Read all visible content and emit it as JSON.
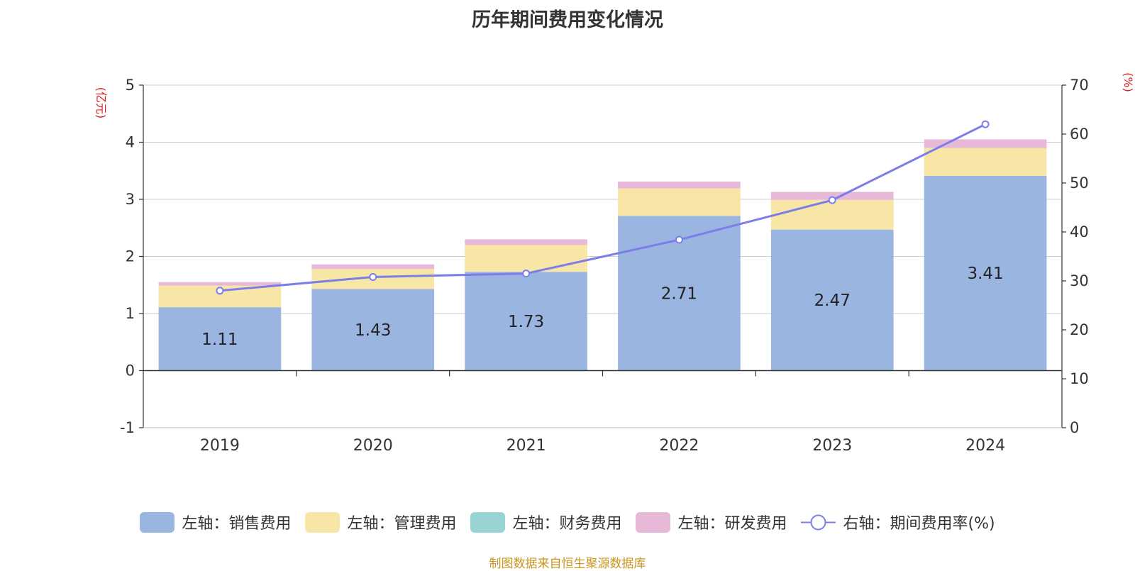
{
  "chart_data": {
    "type": "bar",
    "title": "历年期间费用变化情况",
    "categories": [
      "2019",
      "2020",
      "2021",
      "2022",
      "2023",
      "2024"
    ],
    "series": [
      {
        "name": "左轴：销售费用",
        "axis": "left",
        "color": "#9ab5e0",
        "values": [
          1.11,
          1.43,
          1.73,
          2.71,
          2.47,
          3.41
        ],
        "data_labels": [
          "1.11",
          "1.43",
          "1.73",
          "2.71",
          "2.47",
          "3.41"
        ]
      },
      {
        "name": "左轴：管理费用",
        "axis": "left",
        "color": "#f7e6a6",
        "values": [
          0.38,
          0.35,
          0.47,
          0.48,
          0.52,
          0.49
        ]
      },
      {
        "name": "左轴：财务费用",
        "axis": "left",
        "color": "#99d4d4",
        "values": [
          0.0,
          0.0,
          0.0,
          0.0,
          0.0,
          0.0
        ]
      },
      {
        "name": "左轴：研发费用",
        "axis": "left",
        "color": "#e8b8d8",
        "values": [
          0.06,
          0.08,
          0.1,
          0.12,
          0.14,
          0.15
        ]
      },
      {
        "name": "右轴：期间费用率(%)",
        "axis": "right",
        "type": "line",
        "color": "#7b7ee8",
        "values": [
          28.0,
          30.8,
          31.5,
          38.4,
          46.5,
          62.0
        ]
      }
    ],
    "y_left": {
      "label": "(亿元)",
      "ylim": [
        -1,
        5
      ],
      "ticks": [
        "-1",
        "0",
        "1",
        "2",
        "3",
        "4",
        "5"
      ]
    },
    "y_right": {
      "label": "(%)",
      "ylim": [
        0,
        70
      ],
      "ticks": [
        "0",
        "10",
        "20",
        "30",
        "40",
        "50",
        "60",
        "70"
      ]
    },
    "grid": true,
    "legend_position": "bottom",
    "stacked": true
  },
  "source_note": "制图数据来自恒生聚源数据库"
}
